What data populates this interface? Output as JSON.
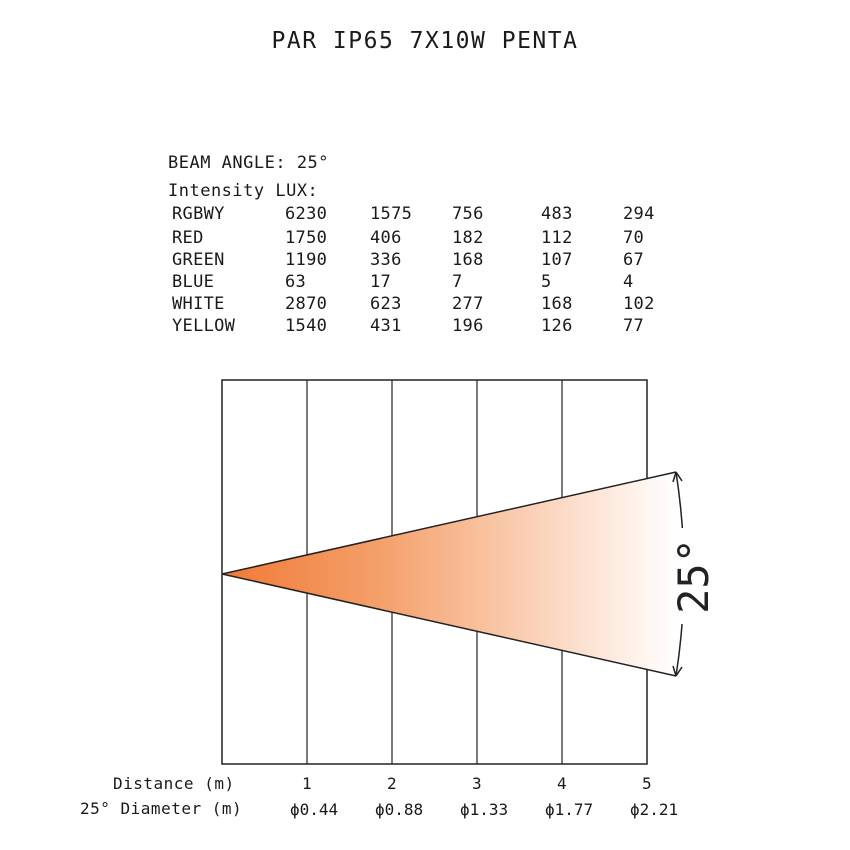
{
  "title": "PAR IP65 7X10W PENTA",
  "beam_angle_label": "BEAM ANGLE: 25°",
  "intensity_label": "Intensity LUX:",
  "table": [
    {
      "name": "RGBWY",
      "values": [
        "6230",
        "1575",
        "756",
        "483",
        "294"
      ]
    },
    {
      "name": "RED",
      "values": [
        "1750",
        "406",
        "182",
        "112",
        "70"
      ]
    },
    {
      "name": "GREEN",
      "values": [
        "1190",
        "336",
        "168",
        "107",
        "67"
      ]
    },
    {
      "name": "BLUE",
      "values": [
        "63",
        "17",
        "7",
        "5",
        "4"
      ]
    },
    {
      "name": "WHITE",
      "values": [
        "2870",
        "623",
        "277",
        "168",
        "102"
      ]
    },
    {
      "name": "YELLOW",
      "values": [
        "1540",
        "431",
        "196",
        "126",
        "77"
      ]
    }
  ],
  "angle_label": "25°",
  "distance_label": "Distance (m)",
  "diameter_label": "25° Diameter (m)",
  "distances": [
    "1",
    "2",
    "3",
    "4",
    "5"
  ],
  "diameters": [
    "ϕ0.44",
    "ϕ0.88",
    "ϕ1.33",
    "ϕ1.77",
    "ϕ2.21"
  ],
  "colors": {
    "beam_start": "#f07a35",
    "beam_end": "#ffffff",
    "lines": "#222222"
  }
}
